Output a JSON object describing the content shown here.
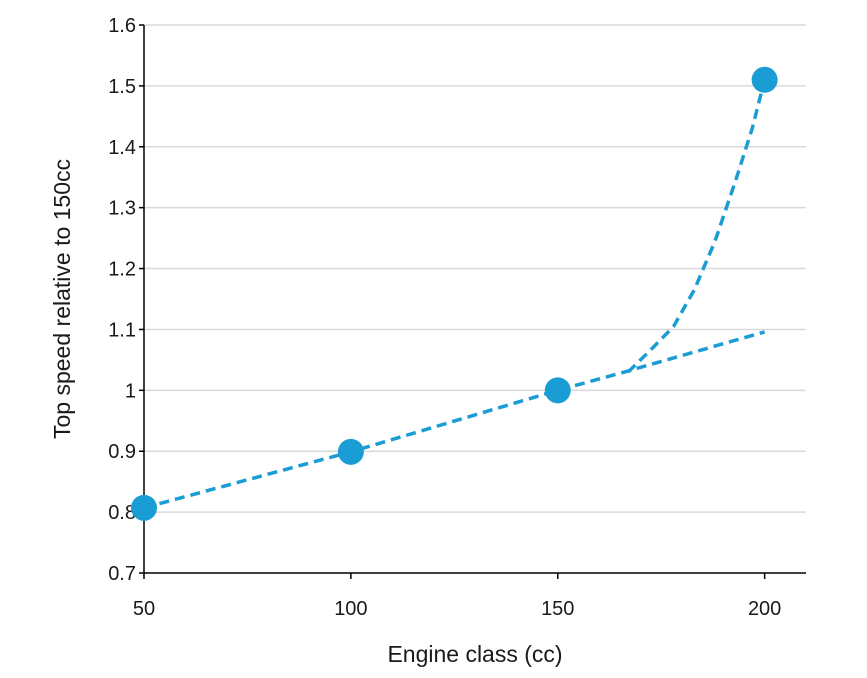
{
  "chart_data": {
    "type": "scatter",
    "title": "",
    "xlabel": "Engine class (cc)",
    "ylabel": "Top speed relative to 150cc",
    "xlim": [
      50,
      210
    ],
    "ylim": [
      0.7,
      1.6
    ],
    "x_ticks": [
      "50",
      "100",
      "150",
      "200"
    ],
    "y_ticks": [
      "0.7",
      "0.8",
      "0.9",
      "1",
      "1.1",
      "1.2",
      "1.3",
      "1.4",
      "1.5",
      "1.6"
    ],
    "grid": "horizontal",
    "legend": "none",
    "point_color": "#1a9cd4",
    "line_color": "#1a9cd4",
    "points": [
      {
        "x": 50,
        "y": 0.807
      },
      {
        "x": 100,
        "y": 0.899
      },
      {
        "x": 150,
        "y": 1.0
      },
      {
        "x": 200,
        "y": 1.51
      }
    ],
    "lines": [
      {
        "style": "dashed",
        "x": [
          50,
          100,
          150,
          165,
          200
        ],
        "y": [
          0.807,
          0.899,
          1.0,
          1.028,
          1.096
        ]
      },
      {
        "style": "dashed",
        "x": [
          167,
          173,
          178,
          183,
          188,
          193,
          197,
          200
        ],
        "y": [
          1.03,
          1.07,
          1.105,
          1.165,
          1.245,
          1.345,
          1.43,
          1.51
        ]
      }
    ]
  }
}
